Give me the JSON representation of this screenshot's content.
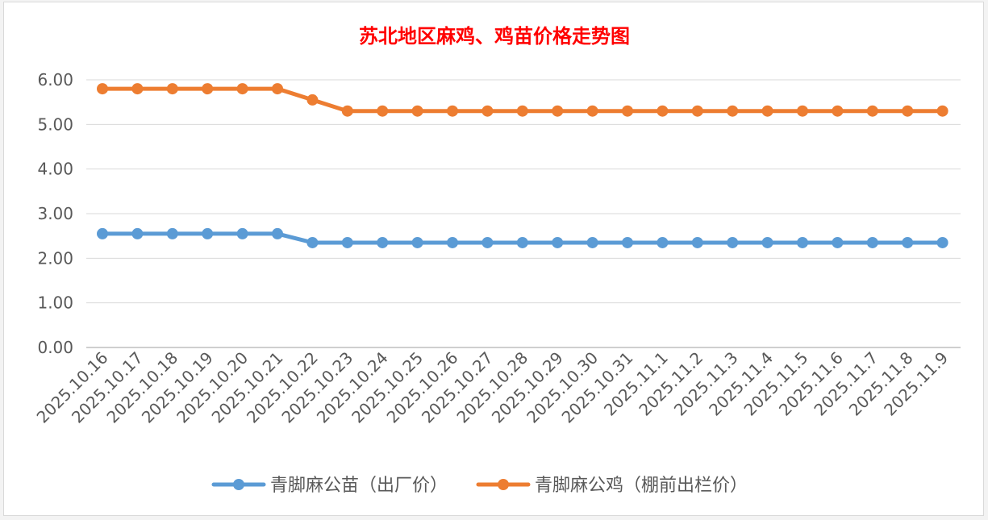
{
  "chart_data": {
    "type": "line",
    "title": "苏北地区麻鸡、鸡苗价格走势图",
    "xlabel": "",
    "ylabel": "",
    "ylim": [
      0,
      6
    ],
    "yticks": [
      "0.00",
      "1.00",
      "2.00",
      "3.00",
      "4.00",
      "5.00",
      "6.00"
    ],
    "grid": true,
    "legend": "bottom",
    "x": [
      "2025.10.16",
      "2025.10.17",
      "2025.10.18",
      "2025.10.19",
      "2025.10.20",
      "2025.10.21",
      "2025.10.22",
      "2025.10.23",
      "2025.10.24",
      "2025.10.25",
      "2025.10.26",
      "2025.10.27",
      "2025.10.28",
      "2025.10.29",
      "2025.10.30",
      "2025.10.31",
      "2025.11.1",
      "2025.11.2",
      "2025.11.3",
      "2025.11.4",
      "2025.11.5",
      "2025.11.6",
      "2025.11.7",
      "2025.11.8",
      "2025.11.9"
    ],
    "series": [
      {
        "name": "青脚麻公苗（出厂价）",
        "color": "#5b9bd5",
        "values": [
          2.55,
          2.55,
          2.55,
          2.55,
          2.55,
          2.55,
          2.35,
          2.35,
          2.35,
          2.35,
          2.35,
          2.35,
          2.35,
          2.35,
          2.35,
          2.35,
          2.35,
          2.35,
          2.35,
          2.35,
          2.35,
          2.35,
          2.35,
          2.35,
          2.35
        ]
      },
      {
        "name": "青脚麻公鸡（棚前出栏价）",
        "color": "#ed7d31",
        "values": [
          5.8,
          5.8,
          5.8,
          5.8,
          5.8,
          5.8,
          5.55,
          5.3,
          5.3,
          5.3,
          5.3,
          5.3,
          5.3,
          5.3,
          5.3,
          5.3,
          5.3,
          5.3,
          5.3,
          5.3,
          5.3,
          5.3,
          5.3,
          5.3,
          5.3
        ]
      }
    ]
  }
}
